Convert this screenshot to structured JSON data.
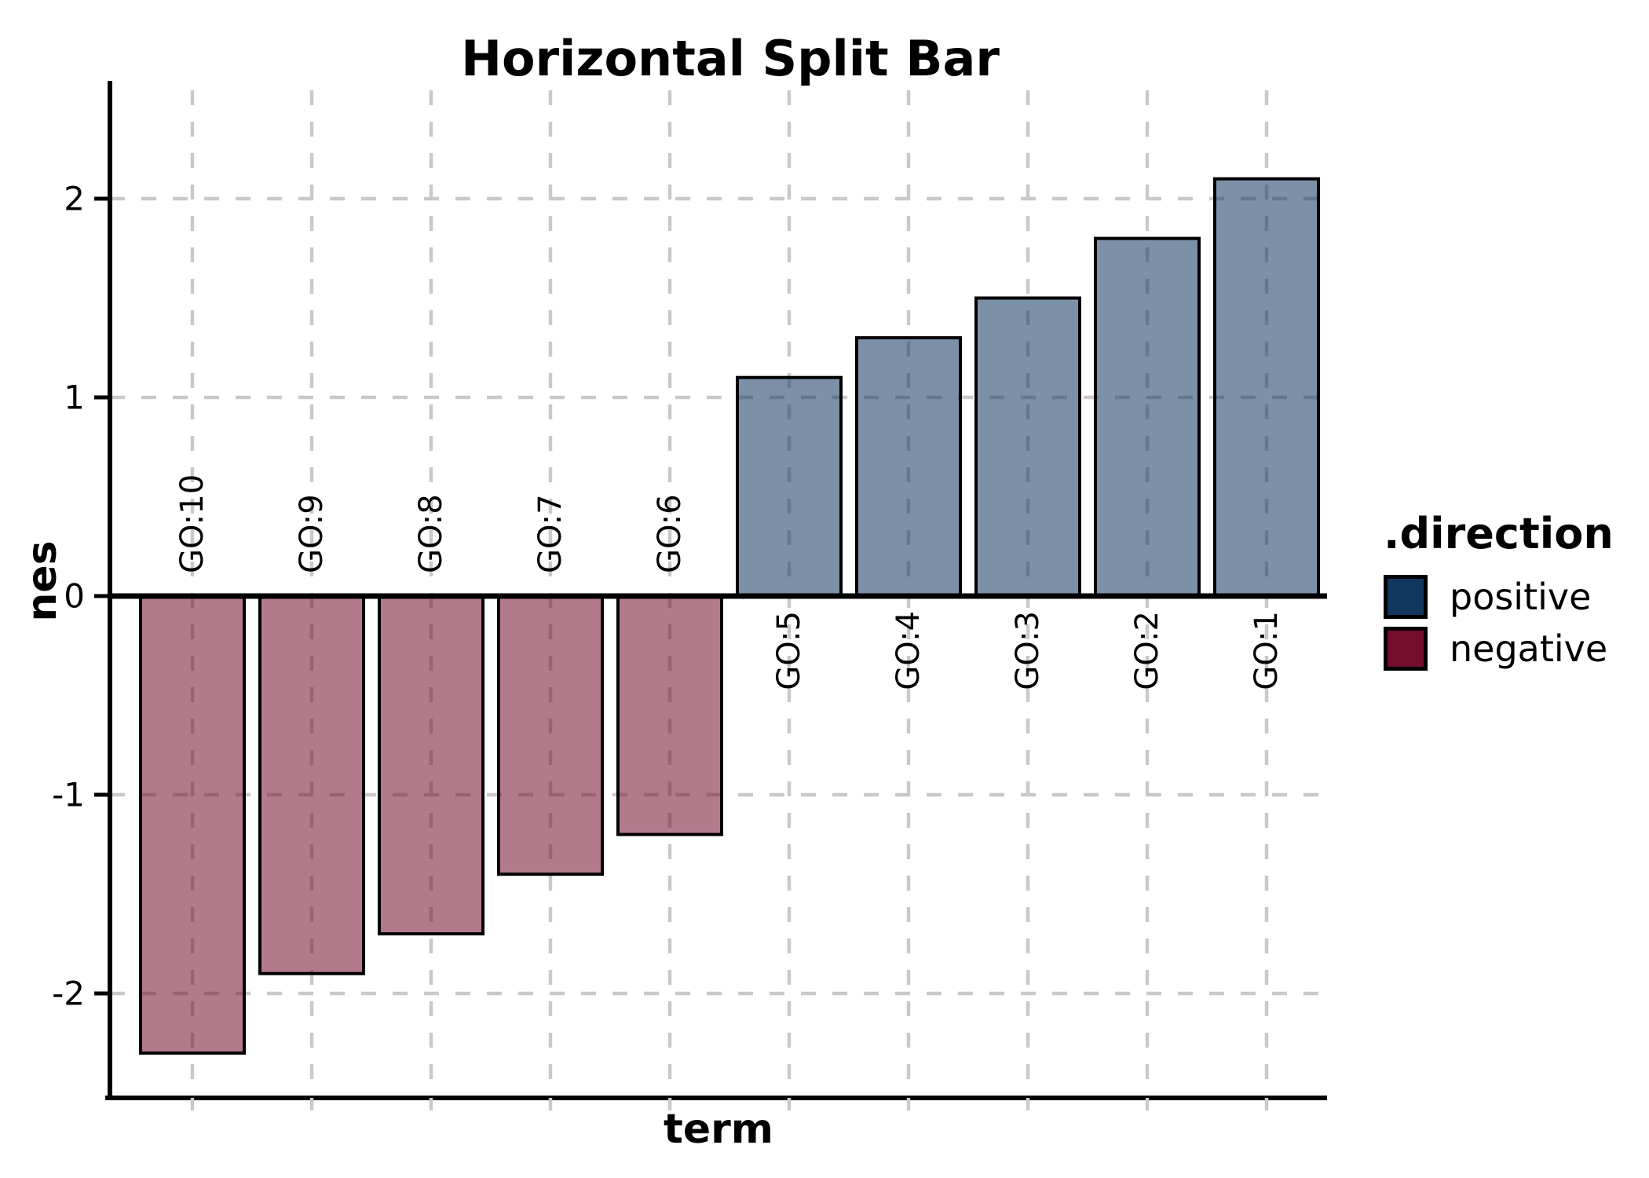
{
  "chart_data": {
    "type": "bar",
    "title": "Horizontal Split Bar",
    "xlabel": "term",
    "ylabel": "nes",
    "categories": [
      "GO:10",
      "GO:9",
      "GO:8",
      "GO:7",
      "GO:6",
      "GO:5",
      "GO:4",
      "GO:3",
      "GO:2",
      "GO:1"
    ],
    "values": [
      -2.3,
      -1.9,
      -1.7,
      -1.4,
      -1.2,
      1.1,
      1.3,
      1.5,
      1.8,
      2.1
    ],
    "directions": [
      "negative",
      "negative",
      "negative",
      "negative",
      "negative",
      "positive",
      "positive",
      "positive",
      "positive",
      "positive"
    ],
    "y_ticks": [
      {
        "value": 2,
        "label": "2"
      },
      {
        "value": 1,
        "label": "1"
      },
      {
        "value": 0,
        "label": "0"
      },
      {
        "value": -1,
        "label": "-1"
      },
      {
        "value": -2,
        "label": "-2"
      }
    ],
    "ylim": [
      -2.55,
      2.55
    ],
    "grid": "dashed",
    "legend_position": "right",
    "legend": {
      "title": ".direction",
      "entries": [
        {
          "label": "positive",
          "color": "#11375E"
        },
        {
          "label": "negative",
          "color": "#740D2D"
        }
      ]
    },
    "colors": {
      "positive_bar_fill": "rgba(17,55,94,0.55)",
      "negative_bar_fill": "rgba(116,13,45,0.55)",
      "bar_stroke": "#000000",
      "gridline": "#c9c9c9",
      "axis": "#000000",
      "text": "#000000"
    }
  }
}
